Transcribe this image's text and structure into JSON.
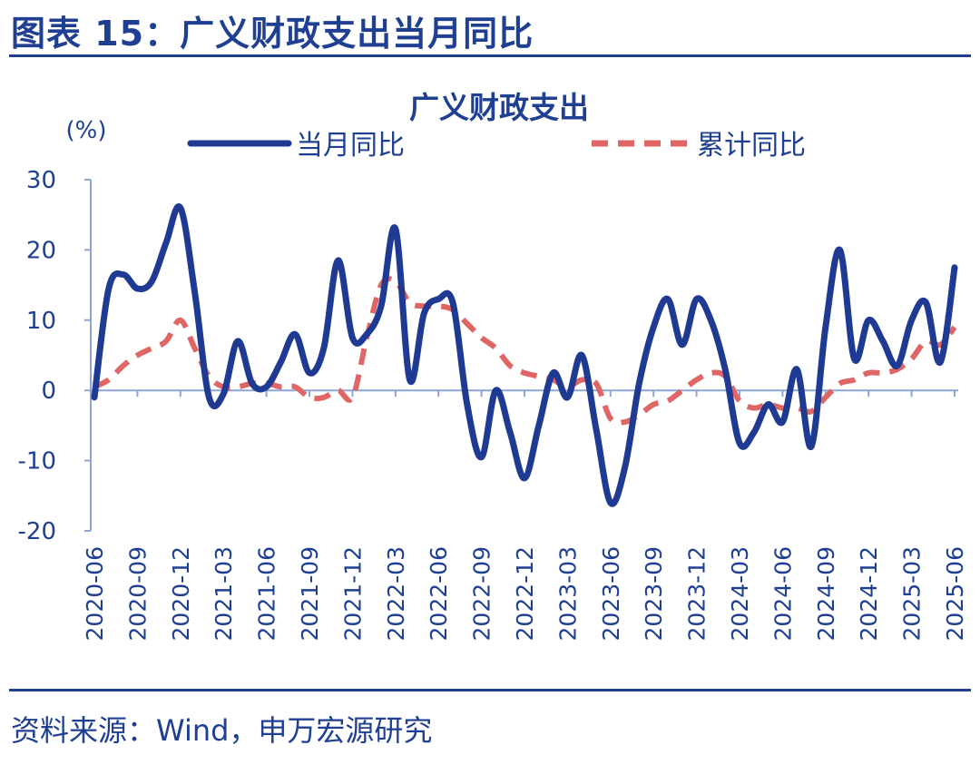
{
  "figure_title": "图表 15：广义财政支出当月同比",
  "source_note": "资料来源：Wind，申万宏源研究",
  "colors": {
    "brand": "#1f3f93",
    "series_monthly": "#1f3a93",
    "series_cumulative": "#e06666"
  },
  "chart_data": {
    "type": "line",
    "title": "广义财政支出",
    "ylabel": "(%)",
    "xlabel": "",
    "ylim": [
      -20,
      30
    ],
    "yticks": [
      -20,
      -10,
      0,
      10,
      20,
      30
    ],
    "grid": false,
    "legend_position": "top",
    "x_tick_labels": [
      "2020-06",
      "2020-09",
      "2020-12",
      "2021-03",
      "2021-06",
      "2021-09",
      "2021-12",
      "2022-03",
      "2022-06",
      "2022-09",
      "2022-12",
      "2023-03",
      "2023-06",
      "2023-09",
      "2023-12",
      "2024-03",
      "2024-06",
      "2024-09",
      "2024-12",
      "2025-03",
      "2025-06"
    ],
    "x": [
      "2020-06",
      "2020-07",
      "2020-08",
      "2020-09",
      "2020-10",
      "2020-11",
      "2020-12",
      "2021-01",
      "2021-02",
      "2021-03",
      "2021-04",
      "2021-05",
      "2021-06",
      "2021-07",
      "2021-08",
      "2021-09",
      "2021-10",
      "2021-11",
      "2021-12",
      "2022-01",
      "2022-02",
      "2022-03",
      "2022-04",
      "2022-05",
      "2022-06",
      "2022-07",
      "2022-08",
      "2022-09",
      "2022-10",
      "2022-11",
      "2022-12",
      "2023-01",
      "2023-02",
      "2023-03",
      "2023-04",
      "2023-05",
      "2023-06",
      "2023-07",
      "2023-08",
      "2023-09",
      "2023-10",
      "2023-11",
      "2023-12",
      "2024-01",
      "2024-02",
      "2024-03",
      "2024-04",
      "2024-05",
      "2024-06",
      "2024-07",
      "2024-08",
      "2024-09",
      "2024-10",
      "2024-11",
      "2024-12",
      "2025-01",
      "2025-02",
      "2025-03",
      "2025-04",
      "2025-05",
      "2025-06"
    ],
    "series": [
      {
        "name": "当月同比",
        "style": "solid",
        "values": [
          -1,
          14.5,
          16.5,
          14.5,
          15.5,
          21,
          26,
          14,
          -1,
          -0.5,
          7,
          1,
          0.5,
          4,
          8,
          2.5,
          6,
          18.5,
          7.5,
          8,
          12,
          23,
          1.5,
          11,
          13,
          12.5,
          -2,
          -9.5,
          0,
          -6,
          -12.5,
          -5,
          2.5,
          -1,
          5,
          -5.5,
          -16,
          -11,
          1,
          9,
          13,
          6.5,
          13,
          10,
          3,
          -7.5,
          -6,
          -2,
          -4.5,
          3,
          -8,
          9,
          20,
          4.5,
          10,
          7,
          3.5,
          10,
          12.5,
          4,
          17.5
        ]
      },
      {
        "name": "累计同比",
        "style": "dashed",
        "values": [
          0.5,
          1.5,
          3.5,
          5,
          6,
          7,
          10,
          6,
          2,
          0.5,
          0.5,
          1,
          1,
          0.5,
          0.5,
          -1,
          -1,
          0,
          -1,
          7.5,
          15,
          15.5,
          12.5,
          12,
          12,
          11.5,
          9.5,
          7.5,
          6,
          3.5,
          2.5,
          2,
          1.5,
          0.5,
          1.5,
          1,
          -4,
          -4.5,
          -3.5,
          -2,
          -1.5,
          0,
          1.5,
          2.5,
          2,
          -1.5,
          -2.5,
          -2,
          -2.5,
          -2.5,
          -3,
          -1,
          1,
          1.5,
          2.5,
          2.5,
          3,
          4.5,
          7,
          6.5,
          9
        ]
      }
    ]
  }
}
